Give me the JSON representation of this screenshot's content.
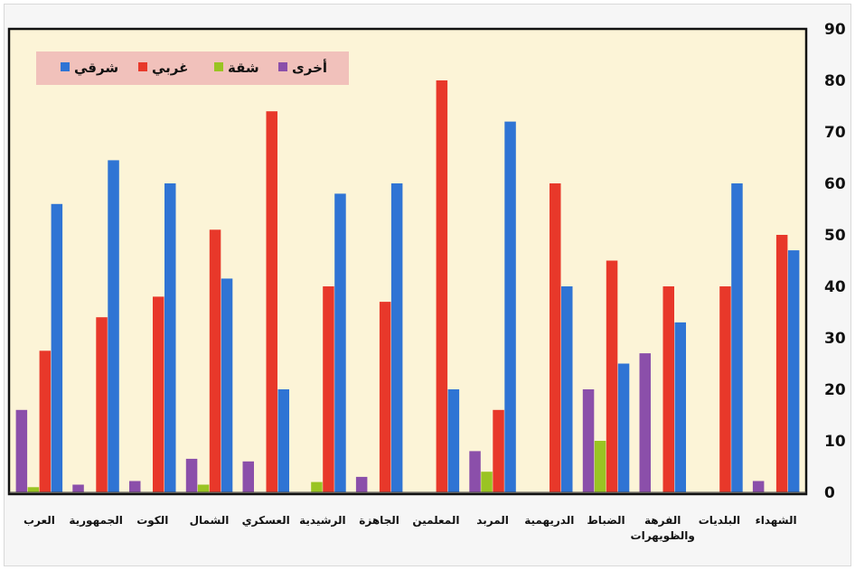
{
  "chart_data": {
    "type": "bar",
    "title": "",
    "xlabel": "",
    "ylabel": "",
    "ylim": [
      0,
      90
    ],
    "yticks": [
      0,
      10,
      20,
      30,
      40,
      50,
      60,
      70,
      80,
      90
    ],
    "y_axis_side": "right",
    "categories": [
      "العرب",
      "الجمهورية",
      "الكوت",
      "الشمال",
      "العسكري",
      "الرشيدية",
      "الجاهزة",
      "المعلمين",
      "المربد",
      "الدريهمية",
      "الضباط",
      "الفرهة\nوالظويهرات",
      "البلديات",
      "الشهداء"
    ],
    "series": [
      {
        "name": "أخرى",
        "color": "#8b4faa",
        "values": [
          16,
          1.5,
          2.2,
          6.5,
          6,
          0,
          3,
          0,
          8,
          0,
          20,
          27,
          0,
          2.2
        ]
      },
      {
        "name": "شقة",
        "color": "#9ac423",
        "values": [
          1,
          0,
          0,
          1.5,
          0,
          2,
          0,
          0,
          4,
          0,
          10,
          0,
          0,
          0
        ]
      },
      {
        "name": "غربي",
        "color": "#e8382a",
        "values": [
          27.5,
          34,
          38,
          51,
          74,
          40,
          37,
          80,
          16,
          60,
          45,
          40,
          40,
          50
        ]
      },
      {
        "name": "شرقي",
        "color": "#2f74d4",
        "values": [
          56,
          64.5,
          60,
          41.5,
          20,
          58,
          60,
          20,
          72,
          40,
          25,
          33,
          60,
          47
        ]
      }
    ],
    "legend": {
      "placement": "top-left",
      "order": [
        "شرقي",
        "غربي",
        "شقة",
        "أخرى"
      ]
    },
    "grid": false,
    "plot_background": "#fcf4d7",
    "legend_background": "#f1c1bb"
  }
}
